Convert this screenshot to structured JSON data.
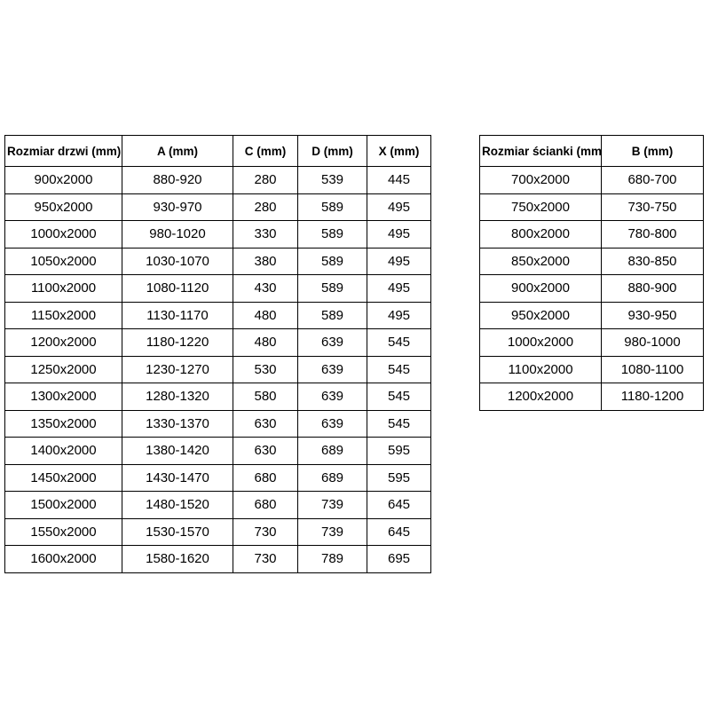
{
  "page": {
    "background_color": "#ffffff",
    "border_color": "#000000",
    "text_color": "#000000"
  },
  "door_table": {
    "headers": [
      "Rozmiar drzwi (mm)",
      "A (mm)",
      "C (mm)",
      "D (mm)",
      "X (mm)"
    ],
    "rows": [
      [
        "900x2000",
        "880-920",
        "280",
        "539",
        "445"
      ],
      [
        "950x2000",
        "930-970",
        "280",
        "589",
        "495"
      ],
      [
        "1000x2000",
        "980-1020",
        "330",
        "589",
        "495"
      ],
      [
        "1050x2000",
        "1030-1070",
        "380",
        "589",
        "495"
      ],
      [
        "1100x2000",
        "1080-1120",
        "430",
        "589",
        "495"
      ],
      [
        "1150x2000",
        "1130-1170",
        "480",
        "589",
        "495"
      ],
      [
        "1200x2000",
        "1180-1220",
        "480",
        "639",
        "545"
      ],
      [
        "1250x2000",
        "1230-1270",
        "530",
        "639",
        "545"
      ],
      [
        "1300x2000",
        "1280-1320",
        "580",
        "639",
        "545"
      ],
      [
        "1350x2000",
        "1330-1370",
        "630",
        "639",
        "545"
      ],
      [
        "1400x2000",
        "1380-1420",
        "630",
        "689",
        "595"
      ],
      [
        "1450x2000",
        "1430-1470",
        "680",
        "689",
        "595"
      ],
      [
        "1500x2000",
        "1480-1520",
        "680",
        "739",
        "645"
      ],
      [
        "1550x2000",
        "1530-1570",
        "730",
        "739",
        "645"
      ],
      [
        "1600x2000",
        "1580-1620",
        "730",
        "789",
        "695"
      ]
    ]
  },
  "wall_table": {
    "headers": [
      "Rozmiar ścianki (mm)",
      "B (mm)"
    ],
    "rows": [
      [
        "700x2000",
        "680-700"
      ],
      [
        "750x2000",
        "730-750"
      ],
      [
        "800x2000",
        "780-800"
      ],
      [
        "850x2000",
        "830-850"
      ],
      [
        "900x2000",
        "880-900"
      ],
      [
        "950x2000",
        "930-950"
      ],
      [
        "1000x2000",
        "980-1000"
      ],
      [
        "1100x2000",
        "1080-1100"
      ],
      [
        "1200x2000",
        "1180-1200"
      ]
    ]
  }
}
